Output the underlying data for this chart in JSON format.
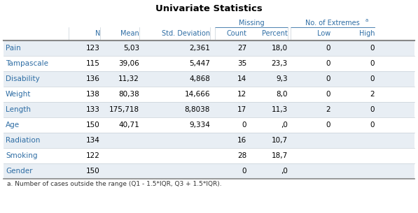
{
  "title": "Univariate Statistics",
  "footnote": "a. Number of cases outside the range (Q1 - 1.5*IQR, Q3 + 1.5*IQR).",
  "rows": [
    [
      "Pain",
      "123",
      "5,03",
      "2,361",
      "27",
      "18,0",
      "0",
      "0"
    ],
    [
      "Tampascale",
      "115",
      "39,06",
      "5,447",
      "35",
      "23,3",
      "0",
      "0"
    ],
    [
      "Disability",
      "136",
      "11,32",
      "4,868",
      "14",
      "9,3",
      "0",
      "0"
    ],
    [
      "Weight",
      "138",
      "80,38",
      "14,666",
      "12",
      "8,0",
      "0",
      "2"
    ],
    [
      "Length",
      "133",
      "175,718",
      "8,8038",
      "17",
      "11,3",
      "2",
      "0"
    ],
    [
      "Age",
      "150",
      "40,71",
      "9,334",
      "0",
      ",0",
      "0",
      "0"
    ],
    [
      "Radiation",
      "134",
      "",
      "",
      "16",
      "10,7",
      "",
      ""
    ],
    [
      "Smoking",
      "122",
      "",
      "",
      "28",
      "18,7",
      "",
      ""
    ],
    [
      "Gender",
      "150",
      "",
      "",
      "0",
      ",0",
      "",
      ""
    ]
  ],
  "header_text_color": "#2E6DA4",
  "row_label_color": "#2E6DA4",
  "data_text_color": "#000000",
  "bg_color": "#FFFFFF",
  "row_bg_odd": "#E8EEF4",
  "row_bg_even": "#FFFFFF",
  "border_dark": "#888888",
  "border_light": "#C8D0D8",
  "title_color": "#000000",
  "footnote_color": "#333333",
  "fig_width": 5.97,
  "fig_height": 3.05,
  "dpi": 100
}
